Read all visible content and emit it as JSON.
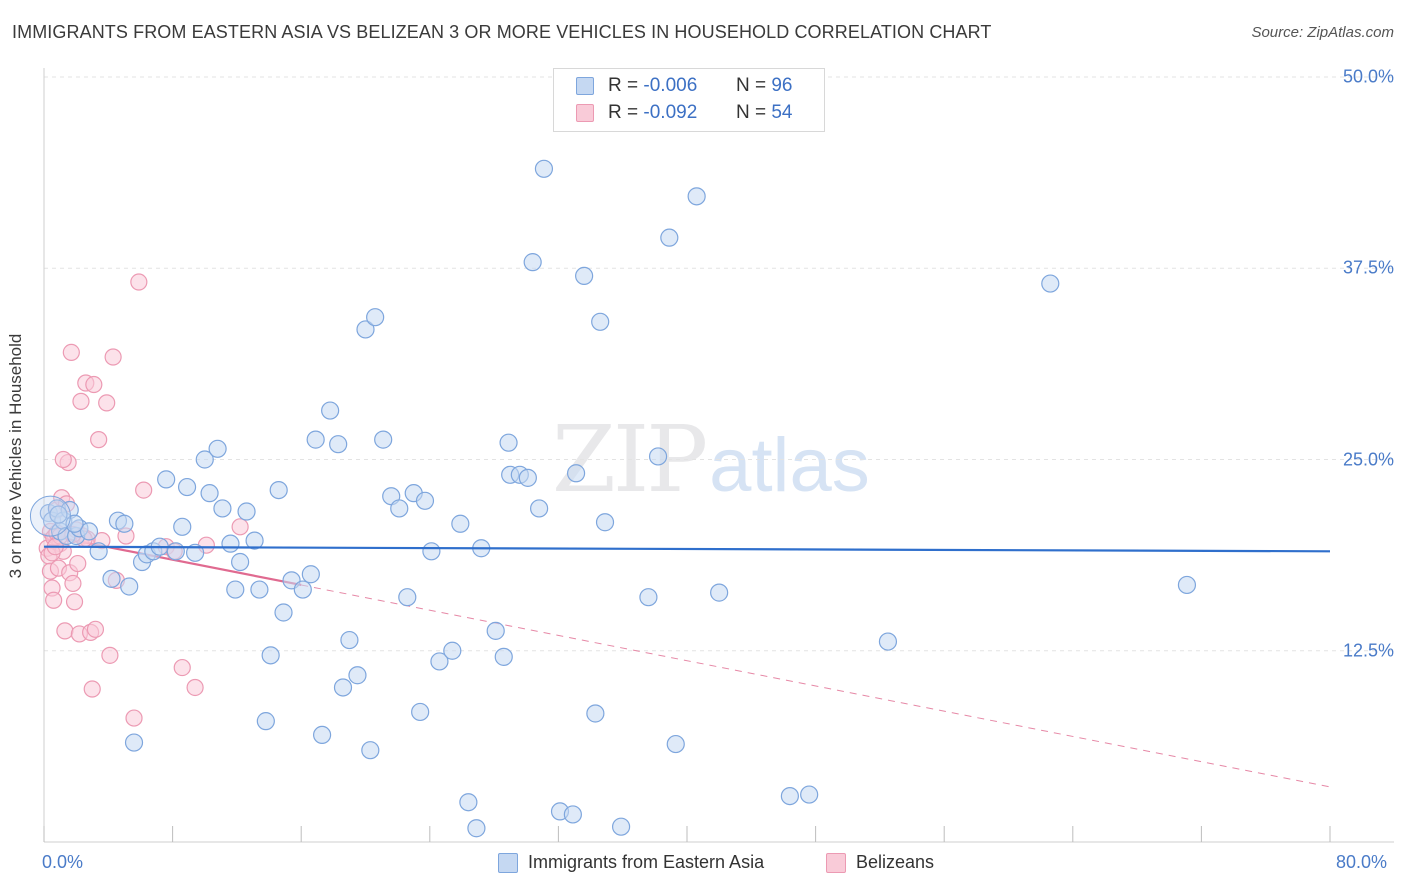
{
  "title": "IMMIGRANTS FROM EASTERN ASIA VS BELIZEAN 3 OR MORE VEHICLES IN HOUSEHOLD CORRELATION CHART",
  "source": "Source: ZipAtlas.com",
  "watermark": {
    "zip": "ZIP",
    "atlas": "atlas"
  },
  "stats": {
    "r_label": "R =",
    "n_label": "N =",
    "blue": {
      "r": "-0.006",
      "n": "96"
    },
    "pink": {
      "r": "-0.092",
      "n": "54"
    }
  },
  "colors": {
    "blue": "#7ea6dd",
    "blue_fill": "#c5d8f2",
    "blue_line": "#2f6fcc",
    "pink": "#ec9ab3",
    "pink_fill": "#f9cbd8",
    "pink_line": "#e06a90",
    "axis_text": "#4a7bc8"
  },
  "chart_data": {
    "type": "scatter",
    "title": "IMMIGRANTS FROM EASTERN ASIA VS BELIZEAN 3 OR MORE VEHICLES IN HOUSEHOLD CORRELATION CHART",
    "xlabel": "",
    "ylabel": "3 or more Vehicles in Household",
    "xlim": [
      0,
      80
    ],
    "ylim": [
      0,
      50
    ],
    "x_tick_labels": [
      "0.0%",
      "80.0%"
    ],
    "y_tick_values": [
      12.5,
      25.0,
      37.5,
      50.0
    ],
    "y_tick_labels": [
      "12.5%",
      "25.0%",
      "37.5%",
      "50.0%"
    ],
    "grid": "horizontal dashed",
    "legend_position": "bottom-center",
    "series": [
      {
        "name": "Immigrants from Eastern Asia",
        "r": -0.006,
        "n": 96,
        "trend": {
          "x": [
            0,
            80
          ],
          "y": [
            19.3,
            19.0
          ],
          "style": "solid"
        },
        "points": [
          [
            0.3,
            21.5
          ],
          [
            0.5,
            21.0
          ],
          [
            0.8,
            21.8
          ],
          [
            1.0,
            20.3
          ],
          [
            1.2,
            21.0
          ],
          [
            1.4,
            20.0
          ],
          [
            1.6,
            21.7
          ],
          [
            2.0,
            20.0
          ],
          [
            2.2,
            20.5
          ],
          [
            2.8,
            20.3
          ],
          [
            3.4,
            19.0
          ],
          [
            4.2,
            17.2
          ],
          [
            4.6,
            21.0
          ],
          [
            5.0,
            20.8
          ],
          [
            5.3,
            16.7
          ],
          [
            5.6,
            6.5
          ],
          [
            6.1,
            18.3
          ],
          [
            6.4,
            18.8
          ],
          [
            6.8,
            19.0
          ],
          [
            7.2,
            19.3
          ],
          [
            7.6,
            23.7
          ],
          [
            8.2,
            19.0
          ],
          [
            8.6,
            20.6
          ],
          [
            8.9,
            23.2
          ],
          [
            9.4,
            18.9
          ],
          [
            10.0,
            25.0
          ],
          [
            10.3,
            22.8
          ],
          [
            10.8,
            25.7
          ],
          [
            11.1,
            21.8
          ],
          [
            11.6,
            19.5
          ],
          [
            11.9,
            16.5
          ],
          [
            12.2,
            18.3
          ],
          [
            12.6,
            21.6
          ],
          [
            13.1,
            19.7
          ],
          [
            13.4,
            16.5
          ],
          [
            13.8,
            7.9
          ],
          [
            14.1,
            12.2
          ],
          [
            14.6,
            23.0
          ],
          [
            14.9,
            15.0
          ],
          [
            15.4,
            17.1
          ],
          [
            16.1,
            16.5
          ],
          [
            16.6,
            17.5
          ],
          [
            16.9,
            26.3
          ],
          [
            17.3,
            7.0
          ],
          [
            17.8,
            28.2
          ],
          [
            18.3,
            26.0
          ],
          [
            18.6,
            10.1
          ],
          [
            19.0,
            13.2
          ],
          [
            19.5,
            10.9
          ],
          [
            20.0,
            33.5
          ],
          [
            20.3,
            6.0
          ],
          [
            20.6,
            34.3
          ],
          [
            21.1,
            26.3
          ],
          [
            21.6,
            22.6
          ],
          [
            22.1,
            21.8
          ],
          [
            22.6,
            16.0
          ],
          [
            23.0,
            22.8
          ],
          [
            23.4,
            8.5
          ],
          [
            23.7,
            22.3
          ],
          [
            24.1,
            19.0
          ],
          [
            24.6,
            11.8
          ],
          [
            25.4,
            12.5
          ],
          [
            25.9,
            20.8
          ],
          [
            26.4,
            2.6
          ],
          [
            26.9,
            0.9
          ],
          [
            27.2,
            19.2
          ],
          [
            28.1,
            13.8
          ],
          [
            28.6,
            12.1
          ],
          [
            28.9,
            26.1
          ],
          [
            29.0,
            24.0
          ],
          [
            29.6,
            24.0
          ],
          [
            30.1,
            23.8
          ],
          [
            30.4,
            37.9
          ],
          [
            30.8,
            21.8
          ],
          [
            31.1,
            44.0
          ],
          [
            32.1,
            2.0
          ],
          [
            32.9,
            1.8
          ],
          [
            33.1,
            24.1
          ],
          [
            33.6,
            37.0
          ],
          [
            34.3,
            8.4
          ],
          [
            34.6,
            34.0
          ],
          [
            34.9,
            20.9
          ],
          [
            35.9,
            1.0
          ],
          [
            37.6,
            16.0
          ],
          [
            38.2,
            25.2
          ],
          [
            38.9,
            39.5
          ],
          [
            39.3,
            6.4
          ],
          [
            40.6,
            42.2
          ],
          [
            42.0,
            16.3
          ],
          [
            46.4,
            3.0
          ],
          [
            47.6,
            3.1
          ],
          [
            52.5,
            13.1
          ],
          [
            62.6,
            36.5
          ],
          [
            71.1,
            16.8
          ],
          [
            0.9,
            21.4
          ],
          [
            1.9,
            20.8
          ]
        ]
      },
      {
        "name": "Belizeans",
        "r": -0.092,
        "n": 54,
        "trend": {
          "x": [
            0,
            80
          ],
          "y": [
            20.1,
            3.6
          ],
          "solid_to_x": 16.0,
          "style": "solid then dashed"
        },
        "points": [
          [
            0.2,
            19.2
          ],
          [
            0.3,
            18.7
          ],
          [
            0.4,
            17.7
          ],
          [
            0.5,
            16.6
          ],
          [
            0.6,
            15.8
          ],
          [
            0.7,
            20.0
          ],
          [
            0.8,
            21.7
          ],
          [
            0.9,
            17.9
          ],
          [
            1.0,
            19.5
          ],
          [
            1.1,
            22.5
          ],
          [
            1.2,
            19.0
          ],
          [
            1.3,
            13.8
          ],
          [
            1.4,
            22.1
          ],
          [
            1.5,
            24.8
          ],
          [
            1.6,
            17.6
          ],
          [
            1.7,
            32.0
          ],
          [
            1.8,
            16.9
          ],
          [
            1.9,
            15.7
          ],
          [
            2.0,
            20.4
          ],
          [
            2.1,
            18.2
          ],
          [
            1.2,
            25.0
          ],
          [
            2.2,
            13.6
          ],
          [
            2.3,
            28.8
          ],
          [
            2.4,
            20.0
          ],
          [
            2.6,
            30.0
          ],
          [
            2.7,
            19.8
          ],
          [
            2.9,
            13.7
          ],
          [
            3.0,
            10.0
          ],
          [
            3.1,
            29.9
          ],
          [
            3.2,
            13.9
          ],
          [
            3.4,
            26.3
          ],
          [
            3.6,
            19.7
          ],
          [
            3.9,
            28.7
          ],
          [
            4.1,
            12.2
          ],
          [
            4.3,
            31.7
          ],
          [
            4.5,
            17.1
          ],
          [
            5.1,
            20.0
          ],
          [
            5.6,
            8.1
          ],
          [
            5.9,
            36.6
          ],
          [
            6.2,
            23.0
          ],
          [
            7.6,
            19.3
          ],
          [
            8.1,
            19.0
          ],
          [
            8.6,
            11.4
          ],
          [
            9.4,
            10.1
          ],
          [
            10.1,
            19.4
          ],
          [
            12.2,
            20.6
          ],
          [
            0.4,
            20.3
          ],
          [
            0.6,
            19.9
          ],
          [
            0.8,
            20.2
          ],
          [
            1.0,
            20.0
          ],
          [
            2.5,
            19.8
          ],
          [
            1.8,
            20.1
          ],
          [
            0.5,
            18.9
          ],
          [
            0.7,
            19.3
          ]
        ]
      }
    ]
  },
  "legend": {
    "blue": "Immigrants from Eastern Asia",
    "pink": "Belizeans"
  }
}
